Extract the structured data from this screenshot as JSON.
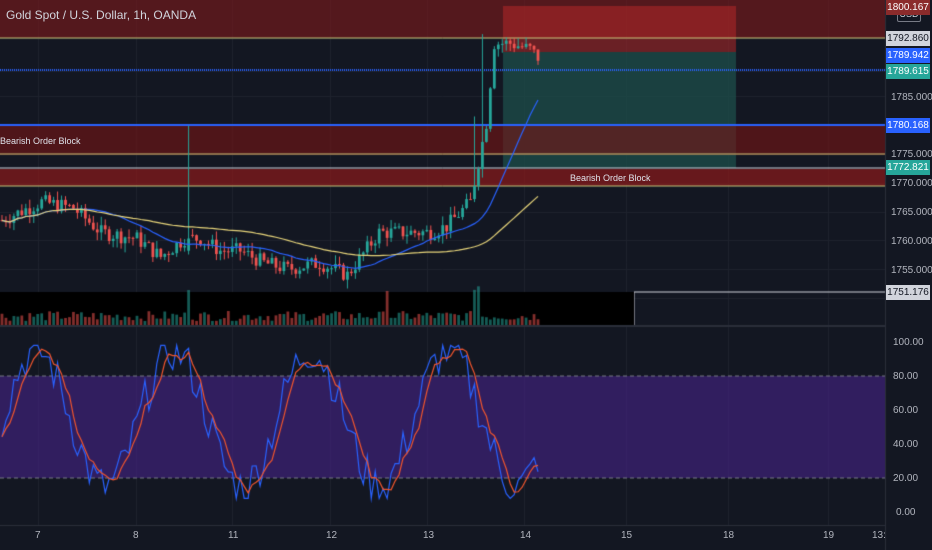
{
  "header": {
    "symbol_title": "Gold Spot / U.S. Dollar, 1h, OANDA"
  },
  "price_axis": {
    "currency_badge": "USD",
    "ticks": [
      "1785.000",
      "1775.000",
      "1770.000",
      "1765.000",
      "1760.000",
      "1755.000"
    ],
    "tags": {
      "top_partial": "1800.167",
      "resistance": "1792.860",
      "last_price": "1789.942",
      "close_marker": "1789.615",
      "blue_level": "1780.168",
      "support": "1772.821",
      "volume_level": "1751.176"
    }
  },
  "oscillator_axis": {
    "ticks": [
      "100.00",
      "80.00",
      "60.00",
      "40.00",
      "20.00",
      "0.00"
    ]
  },
  "time_axis": {
    "ticks": [
      "7",
      "8",
      "11",
      "12",
      "13",
      "14",
      "15",
      "18",
      "19",
      "13:"
    ]
  },
  "zones": {
    "left_label": "Bearish Order Block",
    "right_label": "Bearish Order Block"
  },
  "colors": {
    "background": "#131722",
    "up_candle": "#26a69a",
    "down_candle": "#ef5350",
    "blue_line": "#2962ff",
    "zone_red": "#8b1a1a",
    "zone_teal": "#1d4f4b",
    "oscillator_band": "#2a1a57",
    "ma_yellow": "#e6d47a"
  },
  "chart_data": {
    "type": "candlestick",
    "price_range": [
      1748,
      1800.167
    ],
    "oscillator_range": [
      0,
      100
    ],
    "candles_description": "hourly gold spot candles from day 7 to day 14"
  }
}
